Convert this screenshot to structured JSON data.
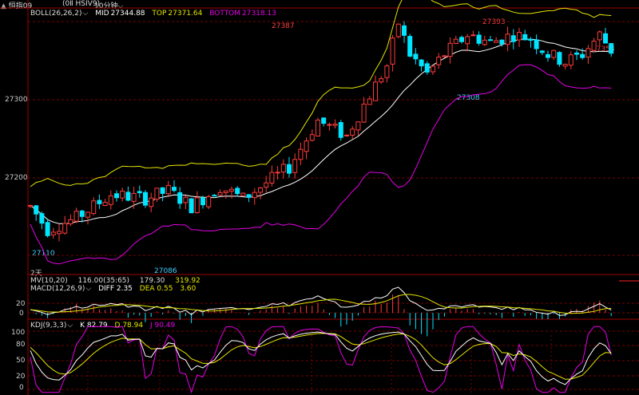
{
  "topbar": {
    "symbol": "恒指09",
    "code": "(0Ⅱ HSIV9)",
    "period": "10分钟"
  },
  "main": {
    "indicator": "BOLL(26,26,2)",
    "mid_label": "MID",
    "mid_value": "27344.88",
    "top_label": "TOP",
    "top_value": "27371.64",
    "bottom_label": "BOTTOM",
    "bottom_value": "27318.13",
    "y_ticks": [
      "27300",
      "27200"
    ],
    "annotations": {
      "high1": "27387",
      "high2": "27393",
      "right": "27358",
      "low1": "27110",
      "low2": "27086",
      "low3": "27308"
    },
    "date_marker": "2天"
  },
  "macd": {
    "line1": "MV(10,20)",
    "v1": "116.00(35:65)",
    "v2": "179.30",
    "v3": "319.92",
    "indicator": "MACD(12,26,9)",
    "diff": "DIFF 2.35",
    "dea": "DEA 0.55",
    "macd": "3.60",
    "y_ticks": [
      "20",
      "0"
    ]
  },
  "kdj": {
    "indicator": "KDJ(9,3,3)",
    "k": "K 82.79",
    "d": "D 78.94",
    "j": "J 90.49",
    "y_ticks": [
      "100",
      "80",
      "50",
      "20",
      "0"
    ]
  },
  "colors": {
    "up": "#ff3b3b",
    "down": "#00e5ff",
    "mid": "#ffffff",
    "top": "#e6e600",
    "bottom": "#e600e6",
    "grid": "#7a0000"
  },
  "chart_data": {
    "type": "candlestick",
    "indicators": [
      "BOLL(26,26,2)",
      "MACD(12,26,9)",
      "KDJ(9,3,3)"
    ],
    "price_range": [
      27080,
      27400
    ],
    "annotated_prices": [
      27387,
      27393,
      27358,
      27110,
      27086,
      27308
    ],
    "macd_range": [
      -20,
      30
    ],
    "kdj_range": [
      0,
      110
    ]
  }
}
